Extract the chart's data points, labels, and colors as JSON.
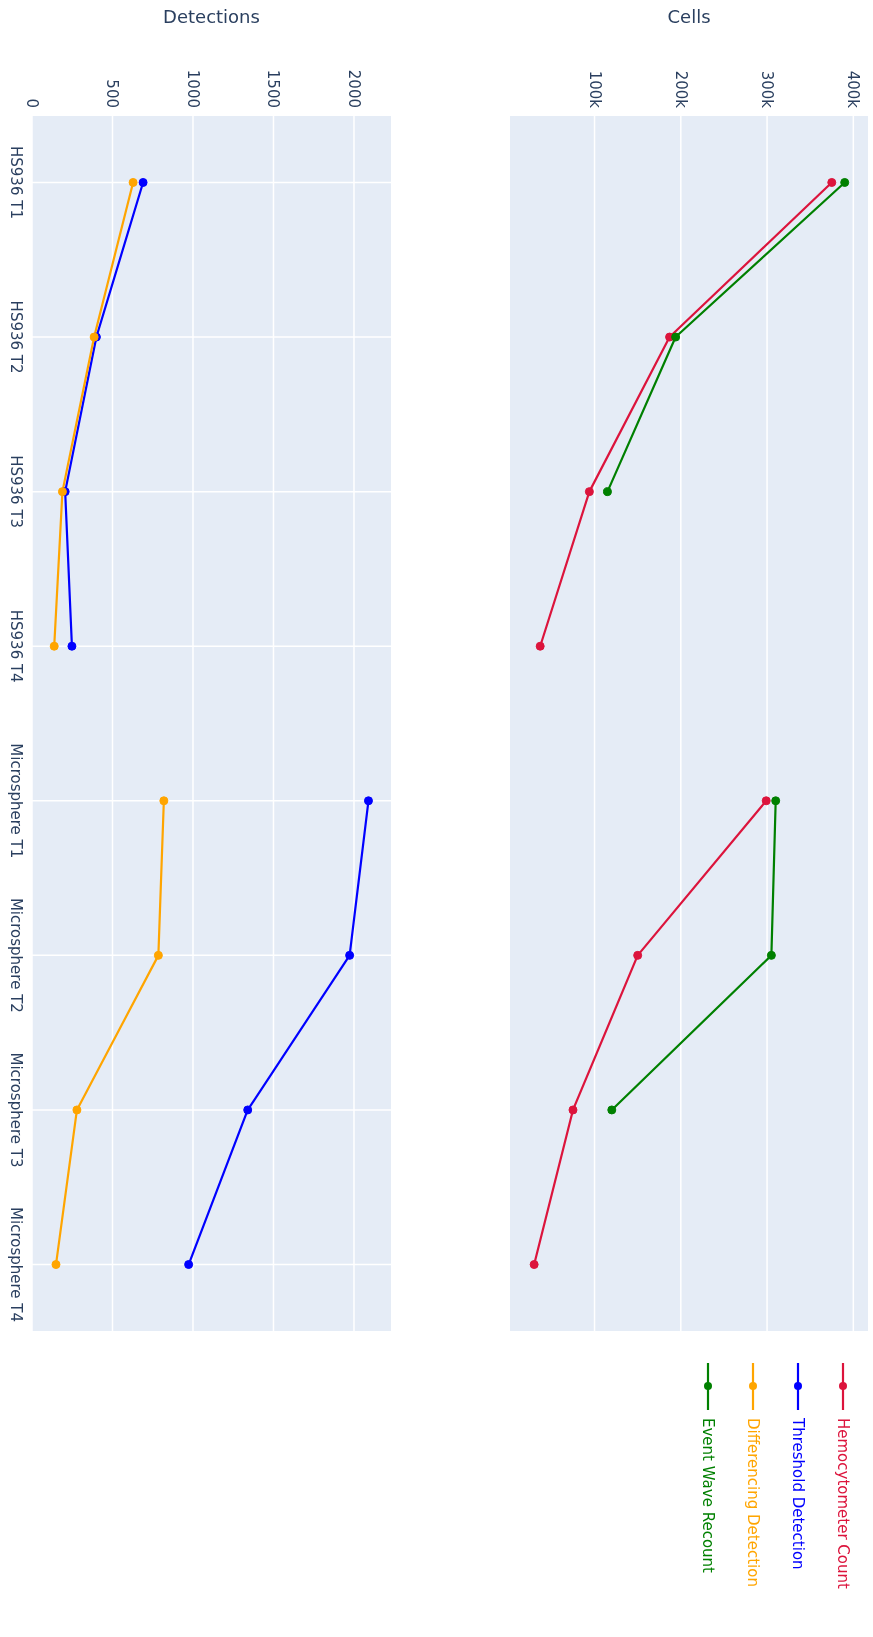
{
  "chart_data": [
    {
      "type": "line",
      "orientation": "horizontal",
      "xlabel": "Detections",
      "categories": [
        "HS936 T1",
        "HS936 T2",
        "HS936 T3",
        "HS936 T4",
        "Microsphere T1",
        "Microsphere T2",
        "Microsphere T3",
        "Microsphere T4"
      ],
      "xlim": [
        0,
        2230
      ],
      "xticks": [
        0,
        500,
        1000,
        1500,
        2000
      ],
      "grid": true,
      "legend": "bottom right",
      "marker": "circle",
      "series": [
        {
          "name": "Threshold Detection",
          "color": "#0000ff",
          "values": [
            690,
            400,
            206,
            248,
            null,
            null,
            null,
            null
          ]
        },
        {
          "color": "#0000ff",
          "values": [
            null,
            null,
            null,
            null,
            2090,
            1973,
            1340,
            973
          ]
        },
        {
          "name": "Differencing Detection",
          "color": "#ffa500",
          "values": [
            628,
            386,
            189,
            138,
            null,
            null,
            null,
            null
          ]
        },
        {
          "color": "#ffa500",
          "values": [
            null,
            null,
            null,
            null,
            819,
            785,
            279,
            149
          ]
        }
      ]
    },
    {
      "type": "line",
      "orientation": "horizontal",
      "xlabel": "Cells",
      "categories": [
        null,
        null,
        null,
        null,
        null,
        null,
        null,
        null
      ],
      "xlim": [
        2000,
        417000
      ],
      "xticks": [
        {
          "value": 100000,
          "label": "100k"
        },
        {
          "value": 200000,
          "label": "200k"
        },
        {
          "value": 300000,
          "label": "300k"
        },
        {
          "value": 400000,
          "label": "400k"
        }
      ],
      "grid": true,
      "legend": "bottom",
      "marker": "circle",
      "tick_labels": "x",
      "series": [
        {
          "name": "Hemocytometer Count",
          "color": "#dc143c",
          "values": [
            375000,
            187000,
            94000,
            37000,
            null,
            null,
            null,
            null
          ]
        },
        {
          "color": "#dc143c",
          "values": [
            null,
            null,
            null,
            null,
            299000,
            150000,
            75000,
            30000
          ]
        },
        {
          "name": "Event Wave Recount",
          "color": "#008000",
          "values": [
            390000,
            194000,
            115000,
            null,
            null,
            null,
            null,
            null
          ]
        },
        {
          "color": "#008000",
          "values": [
            null,
            null,
            null,
            null,
            310000,
            305000,
            120000,
            null
          ]
        }
      ]
    }
  ]
}
